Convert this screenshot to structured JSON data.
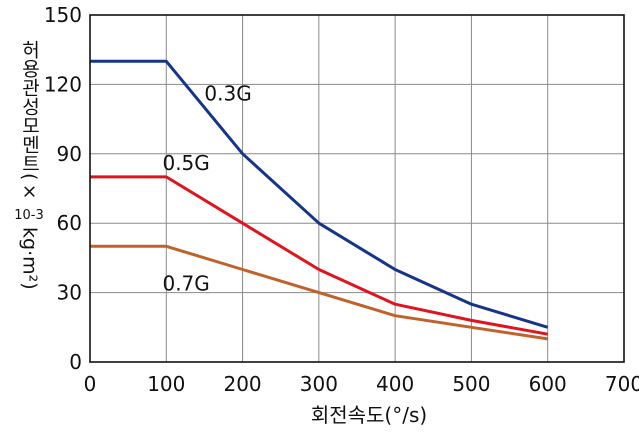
{
  "chart_data": {
    "type": "line",
    "xlabel": "회전속도(°/s)",
    "ylabel_text": "허용관성모멘트(×",
    "ylabel_exponent": "10-3",
    "ylabel_unit": "kg·m²)",
    "xlim": [
      0,
      700
    ],
    "ylim": [
      0,
      150
    ],
    "x_ticks": [
      "0",
      "100",
      "200",
      "300",
      "400",
      "500",
      "600",
      "700"
    ],
    "y_ticks": [
      "0",
      "30",
      "60",
      "90",
      "120",
      "150"
    ],
    "grid": true,
    "series": [
      {
        "name": "0.3G",
        "color": "#14358a",
        "x": [
          0,
          100,
          200,
          300,
          400,
          500,
          600
        ],
        "y": [
          130,
          130,
          90,
          60,
          40,
          25,
          15
        ]
      },
      {
        "name": "0.5G",
        "color": "#e0141e",
        "x": [
          0,
          100,
          200,
          300,
          400,
          500,
          600
        ],
        "y": [
          80,
          80,
          60,
          40,
          25,
          18,
          12
        ]
      },
      {
        "name": "0.7G",
        "color": "#c0622a",
        "x": [
          0,
          100,
          200,
          300,
          400,
          500,
          600
        ],
        "y": [
          50,
          50,
          40,
          30,
          20,
          15,
          10
        ]
      }
    ]
  }
}
